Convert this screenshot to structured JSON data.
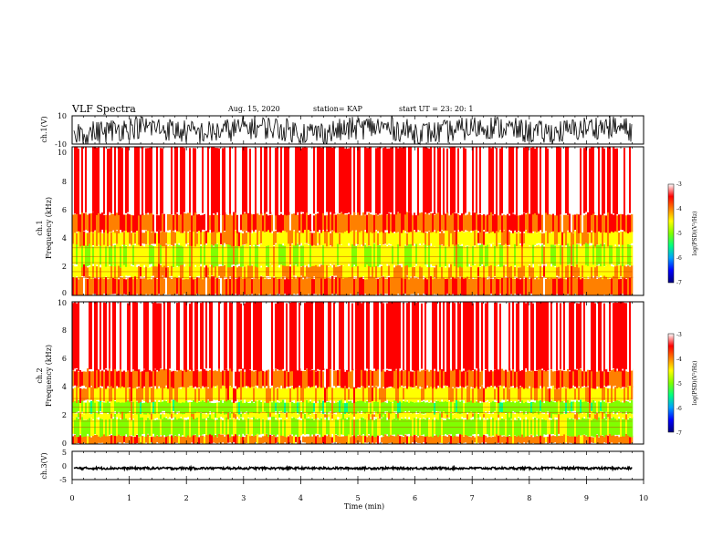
{
  "header": {
    "title": "VLF Spectra",
    "date": "Aug. 15, 2020",
    "station": "station= KAP",
    "start": "start UT = 23: 20: 1"
  },
  "panels": {
    "ch1_wave": {
      "ylabel": "ch.1(V)",
      "ticks": [
        "10",
        "-10"
      ]
    },
    "ch1_spec": {
      "ylabel_top": "ch.1",
      "ylabel": "Frequency (kHz)",
      "ticks": [
        "0",
        "2",
        "4",
        "6",
        "8",
        "10"
      ]
    },
    "ch2_spec": {
      "ylabel_top": "ch.2",
      "ylabel": "Frequency (kHz)",
      "ticks": [
        "0",
        "2",
        "4",
        "6",
        "8",
        "10"
      ]
    },
    "ch3_wave": {
      "ylabel": "ch.3(V)",
      "ticks": [
        "5",
        "0",
        "-5"
      ]
    }
  },
  "colorbar": {
    "label": "log(PSD)(V²/Hz)",
    "ticks": [
      "-3",
      "-4",
      "-5",
      "-6",
      "-7"
    ],
    "colors": [
      "#000080",
      "#0000ff",
      "#00a0ff",
      "#00ff80",
      "#80ff00",
      "#ffff00",
      "#ff8000",
      "#ff0000",
      "#ffffff"
    ]
  },
  "xaxis": {
    "label": "Time (min)",
    "ticks": [
      "0",
      "1",
      "2",
      "3",
      "4",
      "5",
      "6",
      "7",
      "8",
      "9",
      "10"
    ]
  },
  "chart_data": [
    {
      "type": "line",
      "name": "ch1 waveform",
      "xlabel": "Time (min)",
      "ylabel": "ch.1(V)",
      "xlim": [
        0,
        10
      ],
      "ylim": [
        -10,
        10
      ],
      "data_end_min": 9.8,
      "summary": "noise-like signal mostly between -10 and 10 V"
    },
    {
      "type": "heatmap",
      "name": "ch1 spectrogram",
      "xlabel": "Time (min)",
      "ylabel": "Frequency (kHz)",
      "xlim": [
        0,
        10
      ],
      "ylim": [
        0,
        10
      ],
      "zlabel": "log(PSD)(V²/Hz)",
      "zlim": [
        -7,
        -3
      ],
      "data_end_min": 9.8,
      "bands": [
        {
          "f_low": 0.0,
          "f_high": 1.2,
          "level": -3.9
        },
        {
          "f_low": 1.2,
          "f_high": 2.0,
          "level": -4.3
        },
        {
          "f_low": 2.0,
          "f_high": 3.4,
          "level": -4.7
        },
        {
          "f_low": 3.4,
          "f_high": 4.3,
          "level": -4.3
        },
        {
          "f_low": 4.3,
          "f_high": 5.5,
          "level": -3.8
        },
        {
          "f_low": 5.5,
          "f_high": 10.0,
          "level": -3.3
        }
      ]
    },
    {
      "type": "heatmap",
      "name": "ch2 spectrogram",
      "xlabel": "Time (min)",
      "ylabel": "Frequency (kHz)",
      "xlim": [
        0,
        10
      ],
      "ylim": [
        0,
        10
      ],
      "zlabel": "log(PSD)(V²/Hz)",
      "zlim": [
        -7,
        -3
      ],
      "data_end_min": 9.8,
      "bands": [
        {
          "f_low": 0.0,
          "f_high": 0.6,
          "level": -4.0
        },
        {
          "f_low": 0.6,
          "f_high": 1.8,
          "level": -4.9
        },
        {
          "f_low": 1.8,
          "f_high": 2.2,
          "level": -4.5
        },
        {
          "f_low": 2.2,
          "f_high": 3.0,
          "level": -5.0
        },
        {
          "f_low": 3.0,
          "f_high": 4.0,
          "level": -4.3
        },
        {
          "f_low": 4.0,
          "f_high": 5.2,
          "level": -3.8
        },
        {
          "f_low": 5.2,
          "f_high": 10.0,
          "level": -3.3
        }
      ]
    },
    {
      "type": "line",
      "name": "ch3 waveform",
      "xlabel": "Time (min)",
      "ylabel": "ch.3(V)",
      "xlim": [
        0,
        10
      ],
      "ylim": [
        -5,
        5
      ],
      "data_end_min": 9.8,
      "summary": "steady signal around -1 V with small ripple",
      "center": -1.0,
      "amplitude": 0.4
    }
  ]
}
